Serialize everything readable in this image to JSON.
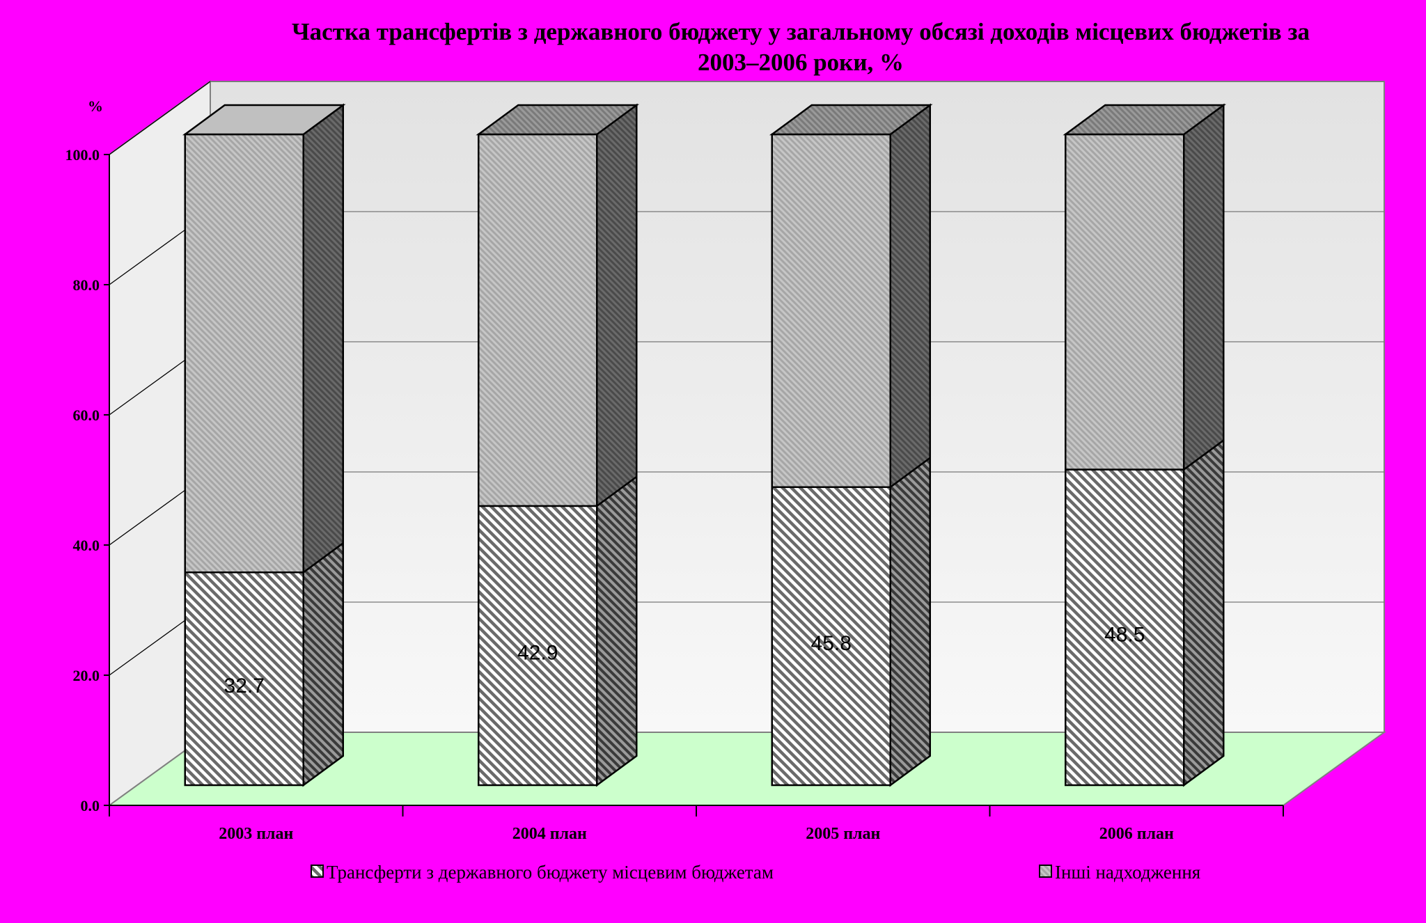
{
  "chart_data": {
    "type": "bar",
    "stacked": true,
    "three_d": true,
    "title": "Частка трансфертів з державного бюджету  у загальному обсязі доходів  місцевих бюджетів за 2003–2006 роки, %",
    "title_lines": [
      "Частка трансфертів з державного бюджету  у загальному обсязі доходів  місцевих бюджетів за",
      "2003–2006 роки, %"
    ],
    "ylabel": "%",
    "ylim": [
      0,
      100
    ],
    "ytick_labels": [
      "0.0",
      "20.0",
      "40.0",
      "60.0",
      "80.0",
      "100.0"
    ],
    "categories": [
      "2003 план",
      "2004 план",
      "2005 план",
      "2006 план"
    ],
    "series": [
      {
        "name": "Трансферти з державного бюджету місцевим бюджетам",
        "values": [
          32.7,
          42.9,
          45.8,
          48.5
        ],
        "data_labels": [
          "32.7",
          "42.9",
          "45.8",
          "48.5"
        ]
      },
      {
        "name": "Інші надходження",
        "values": [
          67.3,
          57.1,
          54.2,
          51.5
        ]
      }
    ],
    "legend_position": "bottom",
    "grid": true,
    "colors": {
      "background": "#ff00ff",
      "floor": "#ccffcc",
      "back_wall": "#e8e8e8",
      "series_1_pattern": "diagonal-hatch",
      "series_2_pattern": "fine-gray"
    }
  }
}
